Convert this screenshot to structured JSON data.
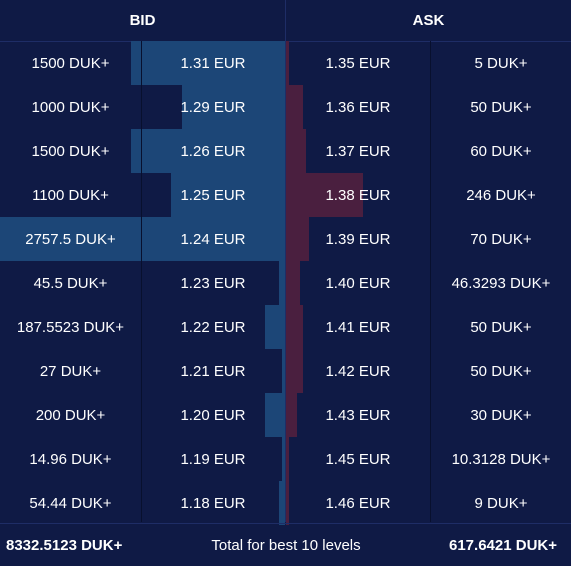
{
  "header": {
    "bid_label": "BID",
    "ask_label": "ASK"
  },
  "colors": {
    "background": "#0f1a45",
    "bid_bar": "#1c4677",
    "ask_bar": "#4a1f3f"
  },
  "rows": [
    {
      "bid_size": "1500 DUK+",
      "bid_price": "1.31 EUR",
      "ask_price": "1.35 EUR",
      "ask_size": "5 DUK+",
      "bid_depth": 0.54,
      "ask_depth": 0.01
    },
    {
      "bid_size": "1000 DUK+",
      "bid_price": "1.29 EUR",
      "ask_price": "1.36 EUR",
      "ask_size": "50 DUK+",
      "bid_depth": 0.36,
      "ask_depth": 0.06
    },
    {
      "bid_size": "1500 DUK+",
      "bid_price": "1.26 EUR",
      "ask_price": "1.37 EUR",
      "ask_size": "60 DUK+",
      "bid_depth": 0.54,
      "ask_depth": 0.07
    },
    {
      "bid_size": "1100 DUK+",
      "bid_price": "1.25 EUR",
      "ask_price": "1.38 EUR",
      "ask_size": "246 DUK+",
      "bid_depth": 0.4,
      "ask_depth": 0.27
    },
    {
      "bid_size": "2757.5 DUK+",
      "bid_price": "1.24 EUR",
      "ask_price": "1.39 EUR",
      "ask_size": "70 DUK+",
      "bid_depth": 1.0,
      "ask_depth": 0.08
    },
    {
      "bid_size": "45.5 DUK+",
      "bid_price": "1.23 EUR",
      "ask_price": "1.40 EUR",
      "ask_size": "46.3293 DUK+",
      "bid_depth": 0.02,
      "ask_depth": 0.05
    },
    {
      "bid_size": "187.5523 DUK+",
      "bid_price": "1.22 EUR",
      "ask_price": "1.41 EUR",
      "ask_size": "50 DUK+",
      "bid_depth": 0.07,
      "ask_depth": 0.06
    },
    {
      "bid_size": "27 DUK+",
      "bid_price": "1.21 EUR",
      "ask_price": "1.42 EUR",
      "ask_size": "50 DUK+",
      "bid_depth": 0.01,
      "ask_depth": 0.06
    },
    {
      "bid_size": "200 DUK+",
      "bid_price": "1.20 EUR",
      "ask_price": "1.43 EUR",
      "ask_size": "30 DUK+",
      "bid_depth": 0.07,
      "ask_depth": 0.04
    },
    {
      "bid_size": "14.96 DUK+",
      "bid_price": "1.19 EUR",
      "ask_price": "1.45 EUR",
      "ask_size": "10.3128 DUK+",
      "bid_depth": 0.01,
      "ask_depth": 0.01
    },
    {
      "bid_size": "54.44 DUK+",
      "bid_price": "1.18 EUR",
      "ask_price": "1.46 EUR",
      "ask_size": "9 DUK+",
      "bid_depth": 0.02,
      "ask_depth": 0.01
    }
  ],
  "footer": {
    "bid_total": "8332.5123 DUK+",
    "label": "Total for best 10 levels",
    "ask_total": "617.6421 DUK+"
  }
}
